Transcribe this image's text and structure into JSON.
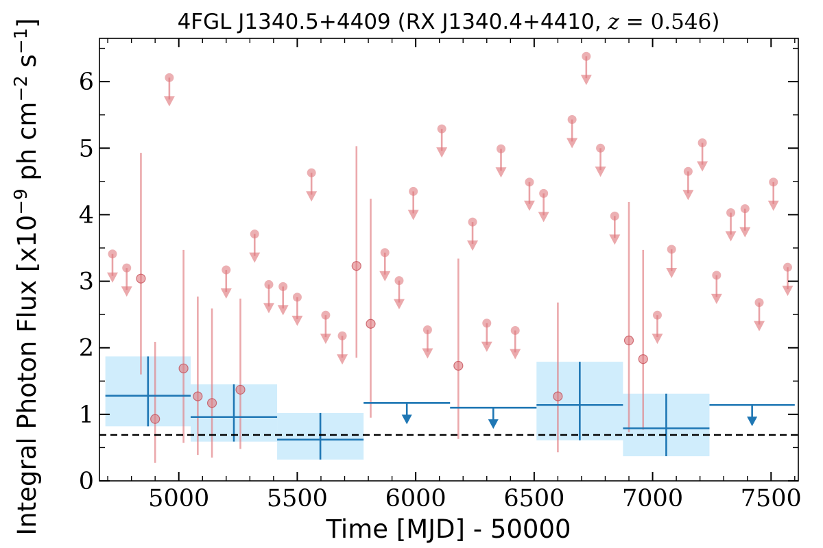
{
  "chart_data": {
    "type": "scatter",
    "title": {
      "prefix": "4FGL J1340.5+4409 (RX J1340.4+4410, ",
      "var": "z",
      "eq": " = ",
      "value": "0.546",
      "suffix": ")"
    },
    "xlabel": "Time [MJD] - 50000",
    "ylabel": {
      "a": "Integral Photon Flux [x10",
      "exp1": "−9",
      "b": " ph cm",
      "exp2": "−2",
      "c": " s",
      "exp3": "−1",
      "d": "]"
    },
    "xlim": [
      4665,
      7615
    ],
    "ylim": [
      0,
      6.65
    ],
    "xticks": [
      5000,
      5500,
      6000,
      6500,
      7000,
      7500
    ],
    "yticks": [
      0,
      1,
      2,
      3,
      4,
      5,
      6
    ],
    "baseline": 0.69,
    "colors": {
      "short": "#e07b80",
      "long": "#1f77b4",
      "band": "#a9defa",
      "baseline": "#000000"
    },
    "short_bins": {
      "halfwidth": 30,
      "detections": [
        {
          "x": 4840,
          "y": 3.04,
          "ylo": 1.6,
          "yhi": 4.93
        },
        {
          "x": 4900,
          "y": 0.93,
          "ylo": 0.27,
          "yhi": 2.09
        },
        {
          "x": 5020,
          "y": 1.69,
          "ylo": 0.57,
          "yhi": 3.47
        },
        {
          "x": 5080,
          "y": 1.27,
          "ylo": 0.39,
          "yhi": 2.77
        },
        {
          "x": 5140,
          "y": 1.17,
          "ylo": 0.35,
          "yhi": 2.59
        },
        {
          "x": 5260,
          "y": 1.37,
          "ylo": 0.48,
          "yhi": 2.74
        },
        {
          "x": 5750,
          "y": 3.23,
          "ylo": 1.85,
          "yhi": 5.03
        },
        {
          "x": 5810,
          "y": 2.36,
          "ylo": 0.95,
          "yhi": 4.24
        },
        {
          "x": 6180,
          "y": 1.73,
          "ylo": 0.63,
          "yhi": 3.34
        },
        {
          "x": 6600,
          "y": 1.27,
          "ylo": 0.43,
          "yhi": 2.68
        },
        {
          "x": 6900,
          "y": 2.11,
          "ylo": 0.73,
          "yhi": 4.19
        },
        {
          "x": 6960,
          "y": 1.83,
          "ylo": 0.77,
          "yhi": 3.47
        }
      ],
      "upper_limits": [
        {
          "x": 4720,
          "y": 3.41
        },
        {
          "x": 4780,
          "y": 3.2
        },
        {
          "x": 4960,
          "y": 6.06
        },
        {
          "x": 5200,
          "y": 3.17
        },
        {
          "x": 5320,
          "y": 3.71
        },
        {
          "x": 5380,
          "y": 2.95
        },
        {
          "x": 5440,
          "y": 2.92
        },
        {
          "x": 5500,
          "y": 2.76
        },
        {
          "x": 5560,
          "y": 4.63
        },
        {
          "x": 5620,
          "y": 2.49
        },
        {
          "x": 5690,
          "y": 2.18
        },
        {
          "x": 5870,
          "y": 3.43
        },
        {
          "x": 5930,
          "y": 3.01
        },
        {
          "x": 5990,
          "y": 4.35
        },
        {
          "x": 6050,
          "y": 2.27
        },
        {
          "x": 6110,
          "y": 5.29
        },
        {
          "x": 6240,
          "y": 3.89
        },
        {
          "x": 6300,
          "y": 2.37
        },
        {
          "x": 6360,
          "y": 4.99
        },
        {
          "x": 6420,
          "y": 2.26
        },
        {
          "x": 6480,
          "y": 4.49
        },
        {
          "x": 6540,
          "y": 4.32
        },
        {
          "x": 6660,
          "y": 5.43
        },
        {
          "x": 6720,
          "y": 6.38
        },
        {
          "x": 6780,
          "y": 5.0
        },
        {
          "x": 6840,
          "y": 3.98
        },
        {
          "x": 7020,
          "y": 2.49
        },
        {
          "x": 7080,
          "y": 3.48
        },
        {
          "x": 7150,
          "y": 4.65
        },
        {
          "x": 7210,
          "y": 5.08
        },
        {
          "x": 7270,
          "y": 3.09
        },
        {
          "x": 7330,
          "y": 4.03
        },
        {
          "x": 7390,
          "y": 4.09
        },
        {
          "x": 7450,
          "y": 2.68
        },
        {
          "x": 7510,
          "y": 4.49
        },
        {
          "x": 7570,
          "y": 3.21
        }
      ]
    },
    "long_bins": {
      "detections": [
        {
          "x0": 4690,
          "x1": 5050,
          "y": 1.28,
          "ylo": 0.82,
          "yhi": 1.87
        },
        {
          "x0": 5050,
          "x1": 5415,
          "y": 0.96,
          "ylo": 0.59,
          "yhi": 1.45
        },
        {
          "x0": 5415,
          "x1": 5780,
          "y": 0.62,
          "ylo": 0.32,
          "yhi": 1.02
        }
      ],
      "upper_limits": [
        {
          "x0": 5780,
          "x1": 6145,
          "y": 1.17
        },
        {
          "x0": 6145,
          "x1": 6510,
          "y": 1.1
        }
      ],
      "detections_2": [
        {
          "x0": 6510,
          "x1": 6875,
          "y": 1.14,
          "ylo": 0.61,
          "yhi": 1.79
        },
        {
          "x0": 6875,
          "x1": 7240,
          "y": 0.79,
          "ylo": 0.37,
          "yhi": 1.31
        }
      ],
      "upper_limits_2": [
        {
          "x0": 7240,
          "x1": 7600,
          "y": 1.14
        }
      ]
    }
  }
}
